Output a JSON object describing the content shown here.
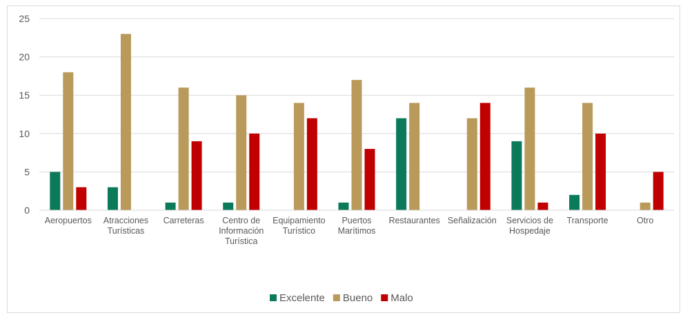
{
  "chart_data": {
    "type": "bar",
    "title": "",
    "xlabel": "",
    "ylabel": "",
    "ylim": [
      0,
      25
    ],
    "yticks": [
      0,
      5,
      10,
      15,
      20,
      25
    ],
    "grid": true,
    "legend_position": "bottom",
    "categories": [
      [
        "Aeropuertos"
      ],
      [
        "Atracciones",
        "Turísticas"
      ],
      [
        "Carreteras"
      ],
      [
        "Centro de",
        "Información",
        "Turística"
      ],
      [
        "Equipamiento",
        "Turístico"
      ],
      [
        "Puertos",
        "Marítimos"
      ],
      [
        "Restaurantes"
      ],
      [
        "Señalización"
      ],
      [
        "Servicios de",
        "Hospedaje"
      ],
      [
        "Transporte"
      ],
      [
        "Otro"
      ]
    ],
    "series": [
      {
        "name": "Excelente",
        "color": "#0b7a5a",
        "values": [
          5,
          3,
          1,
          1,
          0,
          1,
          12,
          0,
          9,
          2,
          0
        ]
      },
      {
        "name": "Bueno",
        "color": "#b99a5b",
        "values": [
          18,
          23,
          16,
          15,
          14,
          17,
          14,
          12,
          16,
          14,
          1
        ]
      },
      {
        "name": "Malo",
        "color": "#c00000",
        "values": [
          3,
          0,
          9,
          10,
          12,
          8,
          0,
          14,
          1,
          10,
          5
        ]
      }
    ]
  }
}
